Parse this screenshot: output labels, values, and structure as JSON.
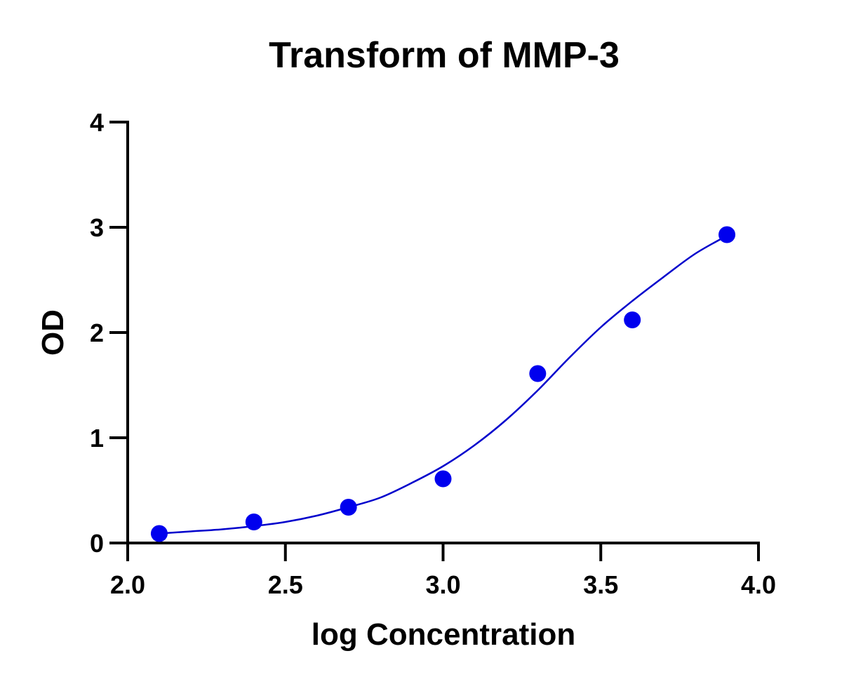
{
  "chart_data": {
    "type": "scatter",
    "title": "Transform of MMP-3",
    "xlabel": "log Concentration",
    "ylabel": "OD",
    "xlim": [
      2.0,
      4.0
    ],
    "ylim": [
      0,
      4
    ],
    "x_ticks": [
      "2.0",
      "2.5",
      "3.0",
      "3.5",
      "4.0"
    ],
    "y_ticks": [
      "0",
      "1",
      "2",
      "3",
      "4"
    ],
    "grid": false,
    "legend": "none",
    "colors": {
      "points": "#0000ee",
      "fit_line": "#0000cc",
      "axes": "#000000"
    },
    "series": [
      {
        "x": [
          2.1,
          2.4,
          2.7,
          3.0,
          3.3,
          3.6,
          3.9
        ],
        "y": [
          0.09,
          0.2,
          0.34,
          0.61,
          1.61,
          2.12,
          2.93
        ]
      }
    ],
    "fit_curve": {
      "x": [
        2.1,
        2.2,
        2.3,
        2.4,
        2.5,
        2.6,
        2.7,
        2.8,
        2.9,
        3.0,
        3.1,
        3.2,
        3.3,
        3.4,
        3.5,
        3.6,
        3.7,
        3.8,
        3.9
      ],
      "y": [
        0.09,
        0.11,
        0.13,
        0.16,
        0.2,
        0.26,
        0.34,
        0.43,
        0.57,
        0.73,
        0.93,
        1.17,
        1.45,
        1.76,
        2.05,
        2.3,
        2.53,
        2.75,
        2.92
      ]
    }
  }
}
